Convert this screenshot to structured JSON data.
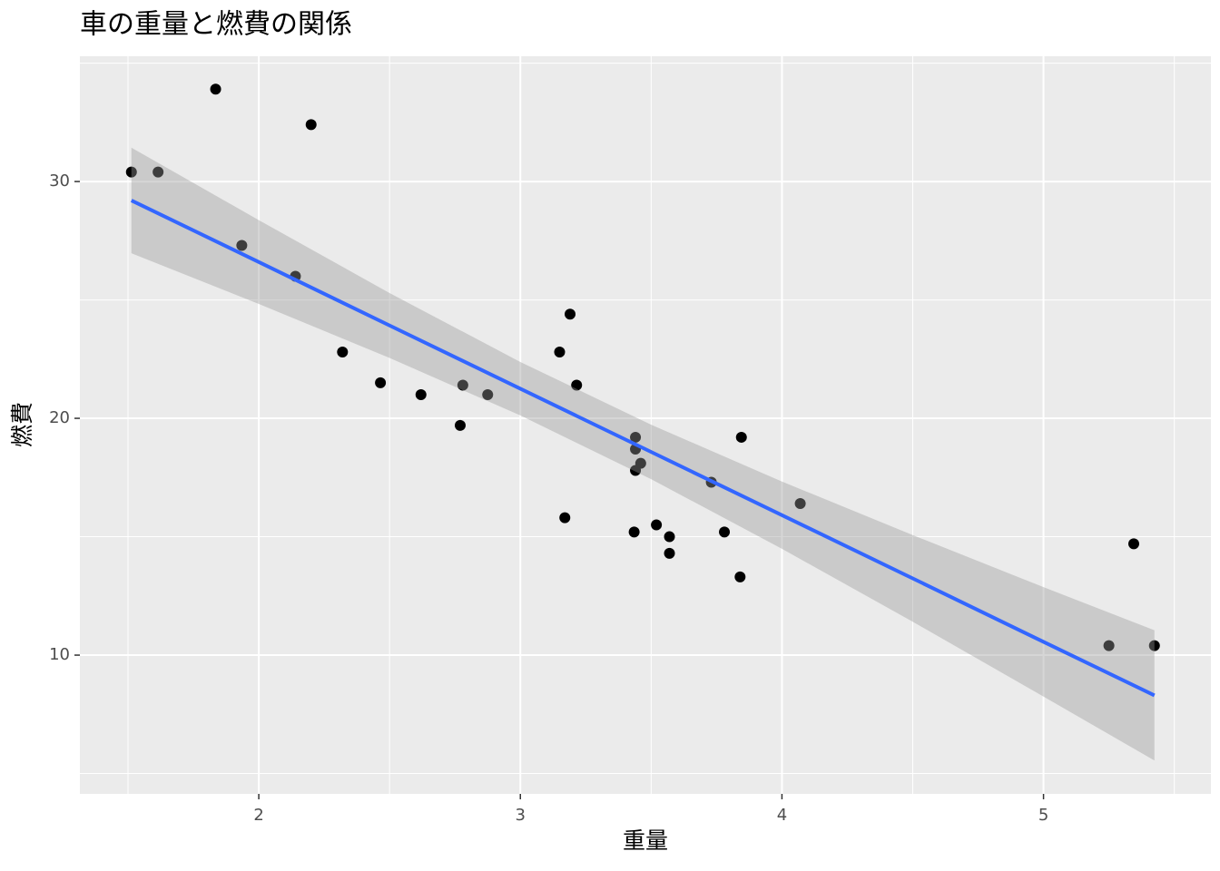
{
  "chart_data": {
    "type": "scatter",
    "title": "車の重量と燃費の関係",
    "x_label": "重量",
    "y_label": "燃費",
    "x": [
      2.62,
      2.875,
      2.32,
      3.215,
      3.44,
      3.46,
      3.57,
      3.19,
      3.15,
      3.44,
      3.44,
      4.07,
      3.73,
      3.78,
      5.25,
      5.424,
      5.345,
      2.2,
      1.615,
      1.835,
      2.465,
      3.52,
      3.435,
      3.84,
      3.845,
      1.935,
      2.14,
      1.513,
      3.17,
      2.77,
      3.57,
      2.78
    ],
    "values": [
      21.0,
      21.0,
      22.8,
      21.4,
      18.7,
      18.1,
      14.3,
      24.4,
      22.8,
      19.2,
      17.8,
      16.4,
      17.3,
      15.2,
      10.4,
      10.4,
      14.7,
      32.4,
      30.4,
      33.9,
      21.5,
      15.5,
      15.2,
      13.3,
      19.2,
      27.3,
      26.0,
      30.4,
      15.8,
      19.7,
      15.0,
      21.4
    ],
    "color": "#000000",
    "fit": {
      "x": [
        1.513,
        2,
        2.5,
        3,
        3.5,
        4,
        4.5,
        5,
        5.424
      ],
      "values": [
        29.2,
        26.6,
        23.92,
        21.25,
        18.58,
        15.91,
        13.24,
        10.56,
        8.3
      ],
      "lower": [
        26.97,
        24.83,
        22.55,
        20.12,
        17.43,
        14.49,
        11.41,
        8.25,
        5.55
      ],
      "upper": [
        31.43,
        28.37,
        25.29,
        22.38,
        19.73,
        17.33,
        15.07,
        12.87,
        11.05
      ],
      "color": "#3366ff",
      "band_color": "#999999"
    },
    "xlim": [
      1.316,
      5.64
    ],
    "ylim": [
      4.14,
      35.29
    ],
    "xticks": [
      2,
      3,
      4,
      5
    ],
    "yticks": [
      10,
      20,
      30
    ],
    "xminor": [
      1.5,
      2.5,
      3.5,
      4.5,
      5.5
    ],
    "yminor": [
      5,
      15,
      25,
      35
    ],
    "grid": true
  }
}
